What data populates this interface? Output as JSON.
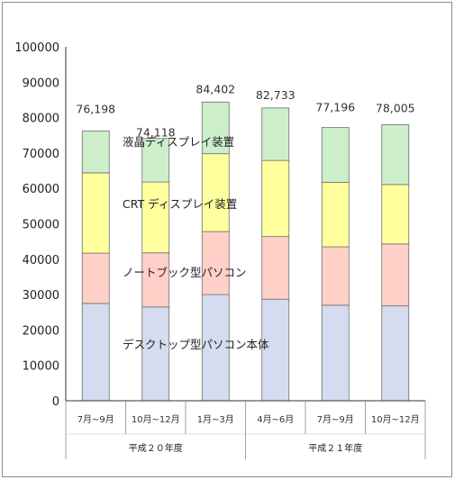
{
  "chart_data": {
    "type": "bar",
    "stacked": true,
    "ylim": [
      0,
      100000
    ],
    "yticks": [
      "0",
      "10000",
      "20000",
      "30000",
      "40000",
      "50000",
      "60000",
      "70000",
      "80000",
      "90000",
      "100000"
    ],
    "grid": false,
    "categories": [
      "7月~9月",
      "10月~12月",
      "1月~3月",
      "4月~6月",
      "7月~9月",
      "10月~12月"
    ],
    "groups": [
      {
        "label": "平成２０年度",
        "span": 3
      },
      {
        "label": "平成２１年度",
        "span": 3
      }
    ],
    "totals": [
      76198,
      74118,
      84402,
      82733,
      77196,
      78005
    ],
    "total_labels": [
      "76,198",
      "74,118",
      "84,402",
      "82,733",
      "77,196",
      "78,005"
    ],
    "series": [
      {
        "name": "デスクトップ型パソコン本体",
        "color": "#d6dcef",
        "values": [
          27500,
          26500,
          30000,
          28700,
          27000,
          26800
        ]
      },
      {
        "name": "ノートブック型パソコン",
        "color": "#ffd0c8",
        "values": [
          14200,
          15300,
          17800,
          17700,
          16500,
          17500
        ]
      },
      {
        "name": "CRT ディスプレイ装置",
        "color": "#ffff9d",
        "values": [
          22700,
          20000,
          22000,
          21500,
          18200,
          16800
        ]
      },
      {
        "name": "液晶ディスプレイ装置",
        "color": "#cdeecb",
        "values": [
          11798,
          12318,
          14602,
          14833,
          15496,
          16905
        ]
      }
    ]
  }
}
